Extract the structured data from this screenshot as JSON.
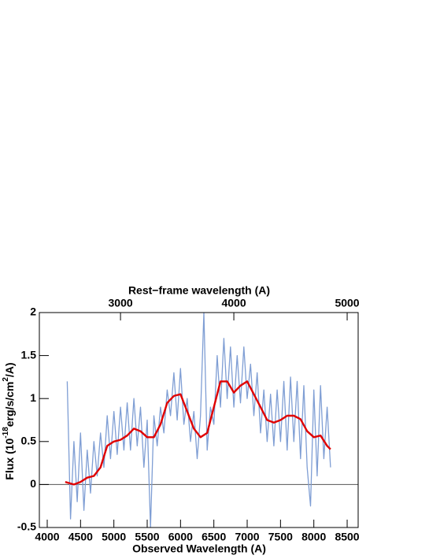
{
  "chart_data": {
    "type": "line",
    "xlabel": "Observed Wavelength (A)",
    "x2label": "Rest−frame wavelength (A)",
    "ylabel": [
      "Flux (10",
      "-18",
      "erg/s/cm",
      "2",
      "/A)"
    ],
    "xlim": [
      3882,
      8665
    ],
    "xticks": [
      4000,
      4500,
      5000,
      5500,
      6000,
      6500,
      7000,
      7500,
      8000,
      8500
    ],
    "x2lim": [
      2284,
      5097
    ],
    "x2ticks": [
      3000,
      4000,
      5000
    ],
    "ylim": [
      -0.5,
      2
    ],
    "yticks": [
      -0.5,
      0,
      0.5,
      1,
      1.5,
      2
    ],
    "reference_line": 0,
    "series": [
      {
        "color": "#7f9ed4",
        "x": [
          4300,
          4350,
          4400,
          4450,
          4500,
          4550,
          4600,
          4650,
          4700,
          4750,
          4800,
          4850,
          4900,
          4950,
          5000,
          5050,
          5100,
          5150,
          5200,
          5250,
          5300,
          5350,
          5400,
          5450,
          5500,
          5550,
          5600,
          5650,
          5700,
          5750,
          5800,
          5850,
          5900,
          5950,
          6000,
          6050,
          6100,
          6150,
          6200,
          6250,
          6300,
          6350,
          6400,
          6450,
          6500,
          6550,
          6600,
          6650,
          6700,
          6750,
          6800,
          6850,
          6900,
          6950,
          7000,
          7050,
          7100,
          7150,
          7200,
          7250,
          7300,
          7350,
          7400,
          7450,
          7500,
          7550,
          7600,
          7650,
          7700,
          7750,
          7800,
          7850,
          7900,
          7950,
          8000,
          8050,
          8100,
          8150,
          8200,
          8250
        ],
        "values": [
          1.2,
          -0.4,
          0.5,
          -0.2,
          0.6,
          -0.3,
          0.4,
          -0.1,
          0.5,
          0.1,
          0.6,
          0.2,
          0.8,
          0.3,
          0.85,
          0.35,
          0.9,
          0.4,
          0.95,
          0.4,
          1.0,
          0.45,
          0.9,
          0.2,
          0.75,
          -0.5,
          0.8,
          0.45,
          0.9,
          0.6,
          1.1,
          0.8,
          1.3,
          0.75,
          1.35,
          0.7,
          1.0,
          0.5,
          0.85,
          0.3,
          0.8,
          2.0,
          0.4,
          0.9,
          0.7,
          1.5,
          0.9,
          1.7,
          1.0,
          1.6,
          0.9,
          1.5,
          0.95,
          1.6,
          1.0,
          1.4,
          0.8,
          1.3,
          0.6,
          1.1,
          0.5,
          1.05,
          0.45,
          1.1,
          0.5,
          1.2,
          0.4,
          1.25,
          0.5,
          1.2,
          0.3,
          1.15,
          0.2,
          -0.25,
          1.1,
          0.1,
          1.15,
          0.3,
          0.9,
          0.2
        ]
      },
      {
        "color": "#e00000",
        "x": [
          4270,
          4400,
          4500,
          4600,
          4700,
          4800,
          4900,
          5000,
          5100,
          5200,
          5300,
          5400,
          5500,
          5600,
          5700,
          5800,
          5900,
          6000,
          6100,
          6200,
          6300,
          6400,
          6500,
          6600,
          6700,
          6800,
          6900,
          7000,
          7100,
          7200,
          7300,
          7400,
          7500,
          7600,
          7700,
          7800,
          7900,
          8000,
          8100,
          8200,
          8250
        ],
        "values": [
          0.03,
          0.0,
          0.03,
          0.08,
          0.1,
          0.2,
          0.45,
          0.5,
          0.52,
          0.57,
          0.65,
          0.62,
          0.55,
          0.55,
          0.7,
          0.95,
          1.03,
          1.05,
          0.85,
          0.65,
          0.55,
          0.6,
          0.9,
          1.2,
          1.2,
          1.07,
          1.15,
          1.2,
          1.05,
          0.9,
          0.75,
          0.72,
          0.75,
          0.8,
          0.8,
          0.76,
          0.62,
          0.55,
          0.57,
          0.45,
          0.41
        ]
      }
    ]
  }
}
